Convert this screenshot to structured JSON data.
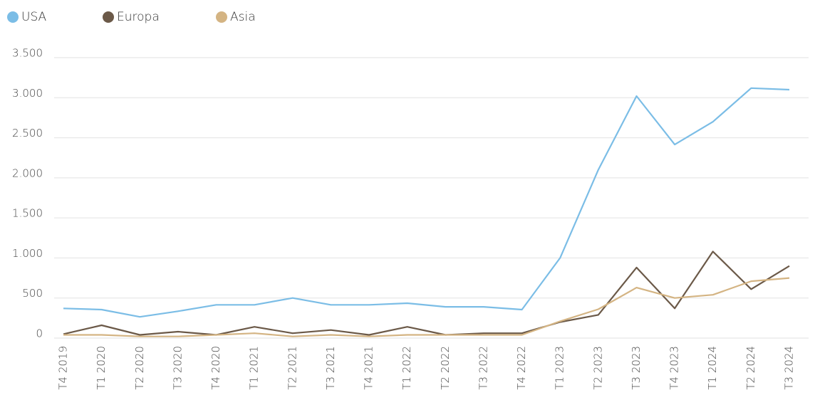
{
  "chart_data": {
    "type": "line",
    "categories": [
      "T4 2019",
      "T1 2020",
      "T2 2020",
      "T3 2020",
      "T4 2020",
      "T1 2021",
      "T2 2021",
      "T3 2021",
      "T4 2021",
      "T1 2022",
      "T2 2022",
      "T3 2022",
      "T4 2022",
      "T1 2023",
      "T2 2023",
      "T3 2023",
      "T4 2023",
      "T1 2024",
      "T2 2024",
      "T3 2024"
    ],
    "series": [
      {
        "name": "USA",
        "color": "#7bbde6",
        "values": [
          370,
          355,
          265,
          335,
          415,
          415,
          500,
          415,
          415,
          435,
          390,
          390,
          355,
          1000,
          2100,
          3020,
          2415,
          2700,
          3120,
          3100
        ]
      },
      {
        "name": "Europa",
        "color": "#6b5948",
        "values": [
          50,
          160,
          40,
          80,
          40,
          140,
          60,
          100,
          40,
          140,
          40,
          60,
          60,
          200,
          290,
          880,
          370,
          1080,
          610,
          900
        ]
      },
      {
        "name": "Asia",
        "color": "#d4b483",
        "values": [
          40,
          40,
          20,
          20,
          40,
          60,
          20,
          40,
          20,
          40,
          40,
          40,
          40,
          210,
          360,
          630,
          500,
          540,
          710,
          750
        ]
      }
    ],
    "ylim": [
      0,
      3500
    ],
    "yticks": [
      0,
      500,
      {
        "value": 1000,
        "label": "1.000"
      },
      {
        "value": 1500,
        "label": "1.500"
      },
      {
        "value": 2000,
        "label": "2.000"
      },
      {
        "value": 2500,
        "label": "2.500"
      },
      {
        "value": 3000,
        "label": "3.000"
      },
      {
        "value": 3500,
        "label": "3.500"
      }
    ],
    "grid": true
  }
}
